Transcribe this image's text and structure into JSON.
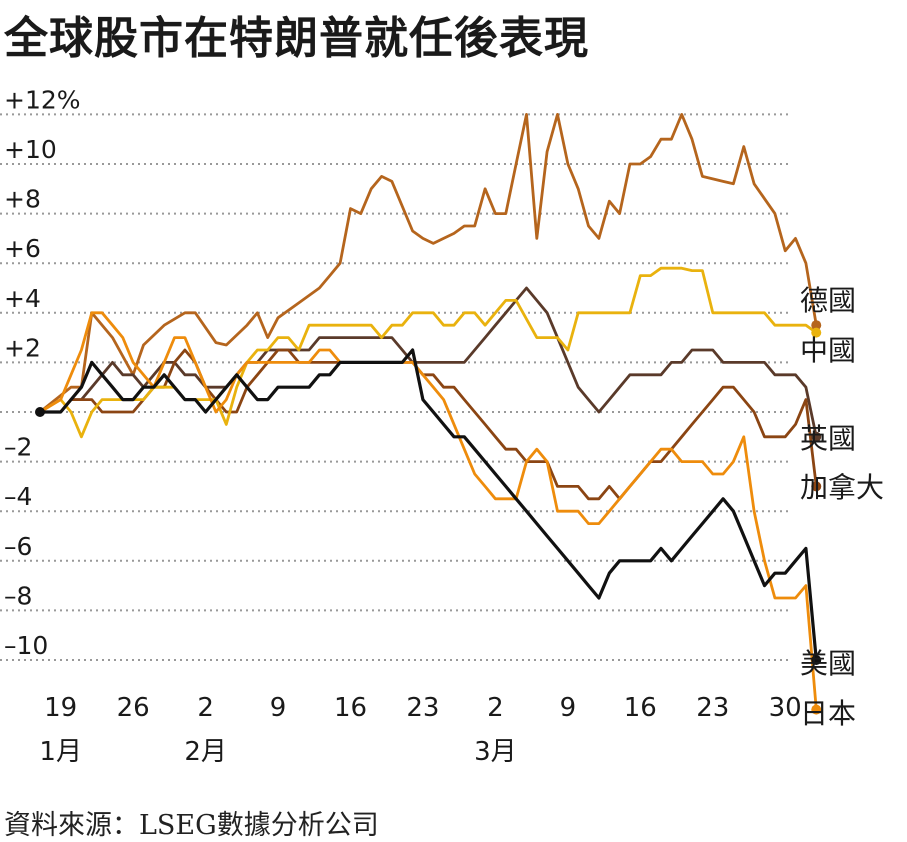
{
  "title": "全球股市在特朗普就任後表現",
  "source": "資料來源：LSEG數據分析公司",
  "colors": {
    "germany": "#b5651d",
    "china": "#e9b20e",
    "uk": "#5a3a2a",
    "canada": "#8b4513",
    "usa": "#111111",
    "japan": "#ee8c0c",
    "grid": "#999999"
  },
  "chart_data": {
    "type": "line",
    "title": "全球股市在特朗普就任後表現",
    "ylim": [
      -10,
      12
    ],
    "xlim": [
      0,
      73
    ],
    "y_ticks": [
      {
        "value": 12,
        "label": "+12%"
      },
      {
        "value": 10,
        "label": "+10"
      },
      {
        "value": 8,
        "label": "+8"
      },
      {
        "value": 6,
        "label": "+6"
      },
      {
        "value": 4,
        "label": "+4"
      },
      {
        "value": 2,
        "label": "+2"
      },
      {
        "value": 0,
        "label": ""
      },
      {
        "value": -2,
        "label": "–2"
      },
      {
        "value": -4,
        "label": "–4"
      },
      {
        "value": -6,
        "label": "–6"
      },
      {
        "value": -8,
        "label": "–8"
      },
      {
        "value": -10,
        "label": "–10"
      }
    ],
    "x_ticks": [
      {
        "day": 2,
        "label": "19"
      },
      {
        "day": 9,
        "label": "26"
      },
      {
        "day": 16,
        "label": "2"
      },
      {
        "day": 23,
        "label": "9"
      },
      {
        "day": 30,
        "label": "16"
      },
      {
        "day": 37,
        "label": "23"
      },
      {
        "day": 44,
        "label": "2"
      },
      {
        "day": 51,
        "label": "9"
      },
      {
        "day": 58,
        "label": "16"
      },
      {
        "day": 65,
        "label": "23"
      },
      {
        "day": 72,
        "label": "30"
      }
    ],
    "months": [
      {
        "day": 2,
        "label": "1月"
      },
      {
        "day": 16,
        "label": "2月"
      },
      {
        "day": 44,
        "label": "3月"
      }
    ],
    "series": [
      {
        "name": "德國",
        "key": "germany",
        "x": [
          0,
          3,
          4,
          5,
          7,
          9,
          10,
          12,
          14,
          15,
          17,
          18,
          20,
          21,
          22,
          23,
          25,
          27,
          28,
          29,
          30,
          31,
          32,
          33,
          34,
          36,
          37,
          38,
          39,
          40,
          41,
          42,
          43,
          44,
          45,
          46,
          47,
          48,
          49,
          50,
          51,
          52,
          53,
          54,
          55,
          56,
          57,
          58,
          59,
          60,
          61,
          62,
          63,
          64,
          65,
          66,
          67,
          68,
          69,
          71,
          72,
          73,
          74,
          75
        ],
        "values": [
          0,
          1,
          1,
          4,
          3,
          1.5,
          2.7,
          3.5,
          4,
          4,
          2.8,
          2.7,
          3.5,
          4,
          3,
          3.8,
          4.4,
          5,
          5.5,
          6,
          8.2,
          8,
          9,
          9.5,
          9.3,
          7.3,
          7,
          6.8,
          7,
          7.2,
          7.5,
          7.5,
          9,
          8,
          8,
          10,
          12,
          7,
          10.5,
          12,
          10,
          9,
          7.5,
          7,
          8.5,
          8,
          10,
          10,
          10.3,
          11,
          11,
          12,
          11,
          9.5,
          9.4,
          9.3,
          9.2,
          10.7,
          9.2,
          8,
          6.5,
          7,
          6,
          3.5
        ]
      },
      {
        "name": "中國",
        "key": "china",
        "x": [
          0,
          2,
          3,
          4,
          5,
          6,
          7,
          8,
          9,
          10,
          11,
          12,
          13,
          14,
          15,
          16,
          17,
          18,
          19,
          20,
          21,
          22,
          23,
          24,
          25,
          26,
          27,
          28,
          30,
          32,
          33,
          34,
          35,
          36,
          37,
          38,
          39,
          40,
          41,
          42,
          43,
          44,
          45,
          46,
          48,
          50,
          51,
          52,
          53,
          54,
          55,
          56,
          57,
          58,
          59,
          60,
          61,
          62,
          63,
          64,
          65,
          66,
          67,
          68,
          69,
          70,
          71,
          72,
          73,
          74,
          75
        ],
        "values": [
          0,
          0.5,
          0,
          -1,
          0,
          0.5,
          0.5,
          0.5,
          0.5,
          0.5,
          1,
          1,
          1,
          0.5,
          0.5,
          0.5,
          0.5,
          -0.5,
          1,
          2,
          2.5,
          2.5,
          3,
          3,
          2.5,
          3.5,
          3.5,
          3.5,
          3.5,
          3.5,
          3,
          3.5,
          3.5,
          4,
          4,
          4,
          3.5,
          3.5,
          4,
          4,
          3.5,
          4,
          4.5,
          4.5,
          3,
          3,
          2.5,
          4,
          4,
          4,
          4,
          4,
          4,
          5.5,
          5.5,
          5.8,
          5.8,
          5.8,
          5.7,
          5.7,
          4,
          4,
          4,
          4,
          4,
          4,
          3.5,
          3.5,
          3.5,
          3.5,
          3.2
        ]
      },
      {
        "name": "英國",
        "key": "uk",
        "x": [
          0,
          2,
          3,
          4,
          5,
          6,
          7,
          8,
          9,
          10,
          11,
          12,
          13,
          14,
          15,
          16,
          17,
          18,
          19,
          20,
          21,
          22,
          23,
          24,
          25,
          26,
          27,
          28,
          29,
          30,
          31,
          32,
          33,
          34,
          35,
          36,
          37,
          38,
          39,
          40,
          41,
          42,
          43,
          44,
          45,
          46,
          47,
          48,
          49,
          50,
          51,
          52,
          53,
          54,
          55,
          56,
          57,
          58,
          59,
          60,
          61,
          62,
          63,
          64,
          65,
          66,
          67,
          68,
          69,
          70,
          71,
          72,
          73,
          74,
          75
        ],
        "values": [
          0,
          0,
          0.5,
          0.5,
          1,
          1.5,
          2,
          1.5,
          1.5,
          1,
          1.5,
          2,
          2,
          1.5,
          1.5,
          1,
          1,
          1,
          1.5,
          2,
          2,
          2.5,
          2.5,
          2.5,
          2.5,
          2.5,
          3,
          3,
          3,
          3,
          3,
          3,
          3,
          3,
          2.5,
          2,
          2,
          2,
          2,
          2,
          2,
          2.5,
          3,
          3.5,
          4,
          4.5,
          5,
          4.5,
          4,
          3,
          2,
          1,
          0.5,
          0,
          0.5,
          1,
          1.5,
          1.5,
          1.5,
          1.5,
          2,
          2,
          2.5,
          2.5,
          2.5,
          2,
          2,
          2,
          2,
          2,
          1.5,
          1.5,
          1.5,
          1,
          -1
        ]
      },
      {
        "name": "加拿大",
        "key": "canada",
        "x": [
          0,
          2,
          3,
          4,
          5,
          6,
          7,
          8,
          9,
          10,
          11,
          12,
          13,
          14,
          15,
          16,
          17,
          18,
          19,
          20,
          21,
          22,
          23,
          24,
          25,
          26,
          27,
          28,
          29,
          30,
          31,
          32,
          33,
          34,
          35,
          36,
          37,
          38,
          39,
          40,
          41,
          42,
          43,
          44,
          45,
          46,
          47,
          48,
          49,
          50,
          51,
          52,
          53,
          54,
          55,
          56,
          57,
          58,
          59,
          60,
          61,
          62,
          63,
          64,
          65,
          66,
          67,
          68,
          69,
          70,
          71,
          72,
          73,
          74,
          75
        ],
        "values": [
          0,
          0,
          0.5,
          0.5,
          0.5,
          0,
          0,
          0,
          0,
          0.5,
          1,
          1,
          2,
          2.5,
          2,
          1,
          0.5,
          0,
          0,
          1,
          1.5,
          2,
          2.5,
          2.5,
          2,
          2,
          2,
          2,
          2,
          2,
          2,
          2,
          2,
          2,
          2,
          2,
          1.5,
          1.5,
          1,
          1,
          0.5,
          0,
          -0.5,
          -1,
          -1.5,
          -1.5,
          -2,
          -2,
          -2,
          -3,
          -3,
          -3,
          -3.5,
          -3.5,
          -3,
          -3.5,
          -3,
          -2.5,
          -2,
          -2,
          -1.5,
          -1,
          -0.5,
          0,
          0.5,
          1,
          1,
          0.5,
          0,
          -1,
          -1,
          -1,
          -0.5,
          0.5,
          -3
        ]
      },
      {
        "name": "美國",
        "key": "usa",
        "x": [
          0,
          2,
          3,
          4,
          5,
          6,
          7,
          8,
          9,
          10,
          11,
          12,
          13,
          14,
          15,
          16,
          17,
          18,
          19,
          20,
          21,
          22,
          23,
          24,
          25,
          26,
          27,
          28,
          29,
          30,
          31,
          32,
          33,
          34,
          35,
          36,
          37,
          38,
          39,
          40,
          41,
          42,
          43,
          44,
          45,
          46,
          47,
          48,
          49,
          50,
          51,
          52,
          53,
          54,
          55,
          56,
          57,
          58,
          59,
          60,
          61,
          62,
          63,
          64,
          65,
          66,
          67,
          68,
          69,
          70,
          71,
          72,
          73,
          74,
          75
        ],
        "values": [
          0,
          0,
          0.5,
          1,
          2,
          1.5,
          1,
          0.5,
          0.5,
          1,
          1,
          1.5,
          1,
          0.5,
          0.5,
          0,
          0.5,
          1,
          1.5,
          1,
          0.5,
          0.5,
          1,
          1,
          1,
          1,
          1.5,
          1.5,
          2,
          2,
          2,
          2,
          2,
          2,
          2,
          2.5,
          0.5,
          0,
          -0.5,
          -1,
          -1,
          -1.5,
          -2,
          -2.5,
          -3,
          -3.5,
          -4,
          -4.5,
          -5,
          -5.5,
          -6,
          -6.5,
          -7,
          -7.5,
          -6.5,
          -6,
          -6,
          -6,
          -6,
          -5.5,
          -6,
          -5.5,
          -5,
          -4.5,
          -4,
          -3.5,
          -4,
          -5,
          -6,
          -7,
          -6.5,
          -6.5,
          -6,
          -5.5,
          -10
        ]
      },
      {
        "name": "日本",
        "key": "japan",
        "x": [
          0,
          2,
          3,
          4,
          5,
          6,
          7,
          8,
          9,
          10,
          11,
          12,
          13,
          14,
          15,
          16,
          17,
          18,
          19,
          20,
          21,
          22,
          23,
          24,
          25,
          26,
          27,
          28,
          29,
          30,
          31,
          32,
          33,
          34,
          35,
          36,
          37,
          38,
          39,
          40,
          41,
          42,
          43,
          44,
          45,
          46,
          47,
          48,
          49,
          50,
          51,
          52,
          53,
          54,
          55,
          56,
          57,
          58,
          59,
          60,
          61,
          62,
          63,
          64,
          65,
          66,
          67,
          68,
          69,
          70,
          71,
          72,
          73,
          74,
          75
        ],
        "values": [
          0,
          0.5,
          1.5,
          2.5,
          4,
          4,
          3.5,
          3,
          2,
          1.5,
          1,
          2,
          3,
          3,
          2,
          1,
          0,
          0.5,
          1.5,
          2,
          2,
          2,
          2,
          2,
          2,
          2,
          2.5,
          2.5,
          2,
          2,
          2,
          2,
          2,
          2,
          2,
          2,
          1.5,
          1,
          0.5,
          -0.5,
          -1.5,
          -2.5,
          -3,
          -3.5,
          -3.5,
          -3.5,
          -2,
          -1.5,
          -2,
          -4,
          -4,
          -4,
          -4.5,
          -4.5,
          -4,
          -3.5,
          -3,
          -2.5,
          -2,
          -1.5,
          -1.5,
          -2,
          -2,
          -2,
          -2.5,
          -2.5,
          -2,
          -1,
          -4,
          -6,
          -7.5,
          -7.5,
          -7.5,
          -7,
          -12
        ]
      }
    ]
  }
}
